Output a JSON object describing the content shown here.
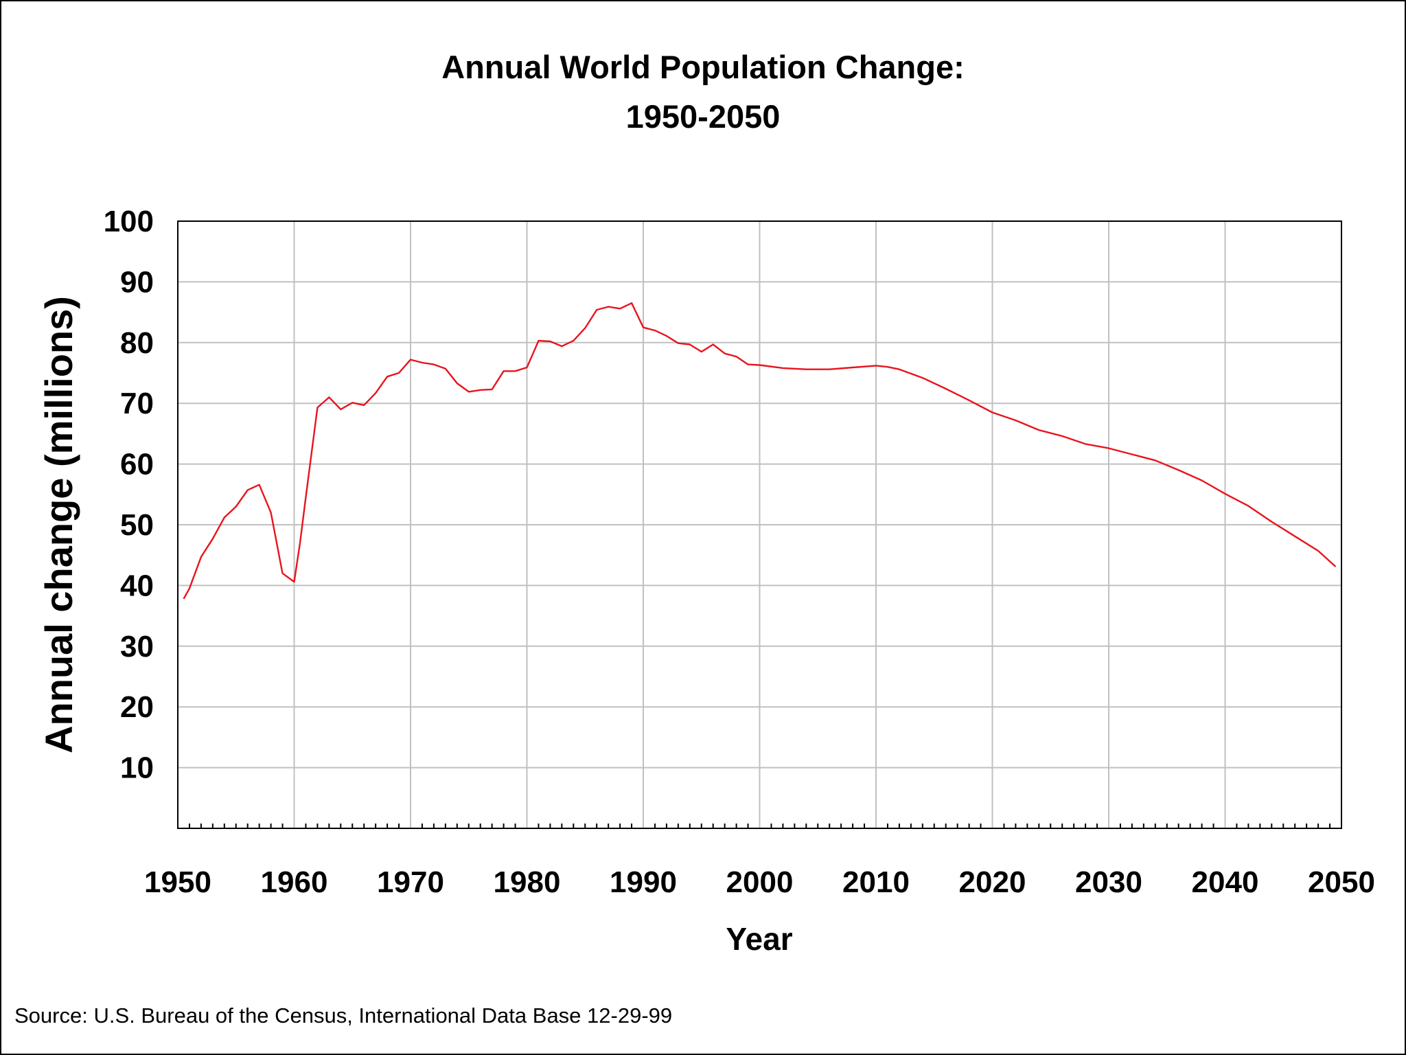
{
  "chart_data": {
    "type": "line",
    "title": "Annual World Population Change:",
    "subtitle": "1950-2050",
    "xlabel": "Year",
    "ylabel": "Annual change (millions)",
    "xlim": [
      1950,
      2050
    ],
    "ylim": [
      0,
      100
    ],
    "x_ticks": [
      "1950",
      "1960",
      "1970",
      "1980",
      "1990",
      "2000",
      "2010",
      "2020",
      "2030",
      "2040",
      "2050"
    ],
    "y_ticks": [
      "10",
      "20",
      "30",
      "40",
      "50",
      "60",
      "70",
      "80",
      "90",
      "100"
    ],
    "grid": true,
    "line_color": "#e8141c",
    "series": [
      {
        "name": "Annual change",
        "x": [
          1950.5,
          1951,
          1952,
          1953,
          1954,
          1955,
          1956,
          1957,
          1958,
          1959,
          1960,
          1960.5,
          1961,
          1962,
          1963,
          1964,
          1965,
          1966,
          1967,
          1968,
          1969,
          1970,
          1971,
          1972,
          1973,
          1974,
          1975,
          1976,
          1977,
          1978,
          1979,
          1980,
          1981,
          1982,
          1983,
          1984,
          1985,
          1986,
          1987,
          1988,
          1989,
          1990,
          1991,
          1992,
          1993,
          1994,
          1995,
          1996,
          1997,
          1998,
          1999,
          2000,
          2002,
          2004,
          2006,
          2008,
          2010,
          2011,
          2012,
          2014,
          2016,
          2018,
          2020,
          2022,
          2024,
          2026,
          2028,
          2030,
          2032,
          2034,
          2036,
          2038,
          2040,
          2042,
          2044,
          2046,
          2048,
          2049.5
        ],
        "values": [
          37.8,
          39.5,
          44.7,
          47.7,
          51.2,
          53.0,
          55.7,
          56.6,
          52.0,
          42.0,
          40.6,
          47.0,
          54.5,
          69.3,
          71.0,
          69.0,
          70.1,
          69.7,
          71.7,
          74.4,
          75.0,
          77.2,
          76.7,
          76.4,
          75.7,
          73.3,
          71.9,
          72.2,
          72.3,
          75.3,
          75.3,
          75.9,
          80.3,
          80.2,
          79.4,
          80.3,
          82.4,
          85.4,
          85.9,
          85.6,
          86.5,
          82.5,
          82.0,
          81.1,
          79.9,
          79.7,
          78.5,
          79.7,
          78.2,
          77.7,
          76.4,
          76.3,
          75.8,
          75.6,
          75.6,
          75.9,
          76.2,
          76.0,
          75.6,
          74.2,
          72.4,
          70.5,
          68.5,
          67.2,
          65.6,
          64.6,
          63.3,
          62.6,
          61.6,
          60.6,
          59.0,
          57.3,
          55.1,
          53.1,
          50.5,
          48.1,
          45.7,
          43.1
        ]
      }
    ],
    "source": "Source: U.S. Bureau of the Census, International Data Base 12-29-99"
  }
}
